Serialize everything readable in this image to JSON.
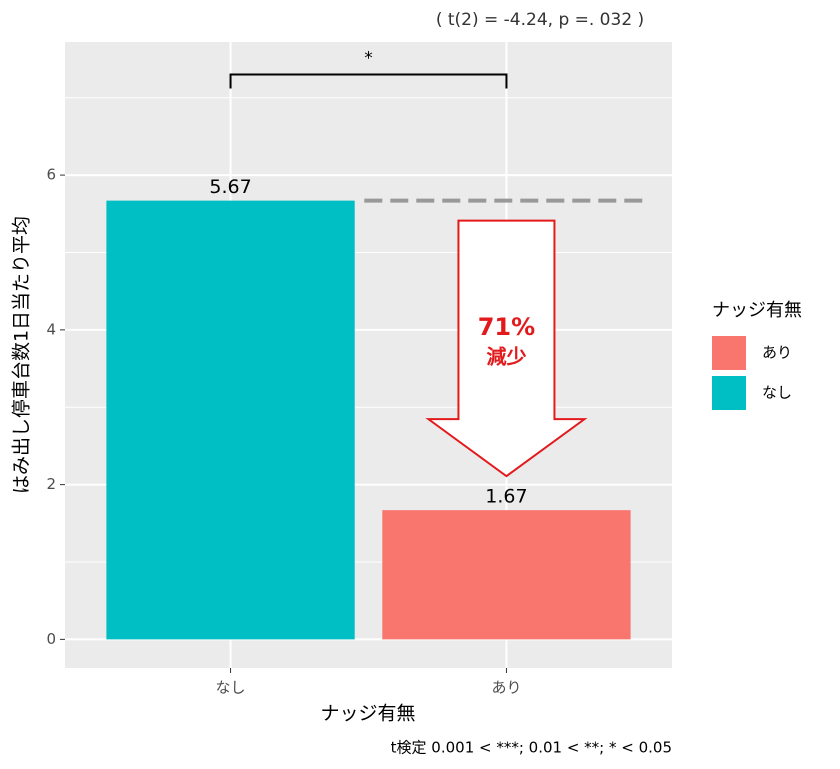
{
  "chart_data": {
    "type": "bar",
    "subtitle": "( t(2) = -4.24, p =. 032 )",
    "categories": [
      "なし",
      "あり"
    ],
    "values": [
      5.67,
      1.67
    ],
    "series": [
      {
        "name": "あり",
        "color": "#F8766D"
      },
      {
        "name": "なし",
        "color": "#00BFC4"
      }
    ],
    "legend_title": "ナッジ有無",
    "x_label": "ナッジ有無",
    "y_label": "はみ出し停車台数1日当たり平均",
    "ylim": [
      -0.37,
      7.72
    ],
    "yticks": [
      0,
      2,
      4,
      6
    ],
    "minor_yticks": [
      1,
      3,
      5,
      7
    ],
    "grid": true,
    "significance": {
      "label": "*",
      "y": 7.3
    },
    "annotation": {
      "percent": "71%",
      "text": "減少",
      "color": "#e31a1c"
    },
    "caption": "t検定 0.001 < ***; 0.01 < **; * < 0.05"
  }
}
